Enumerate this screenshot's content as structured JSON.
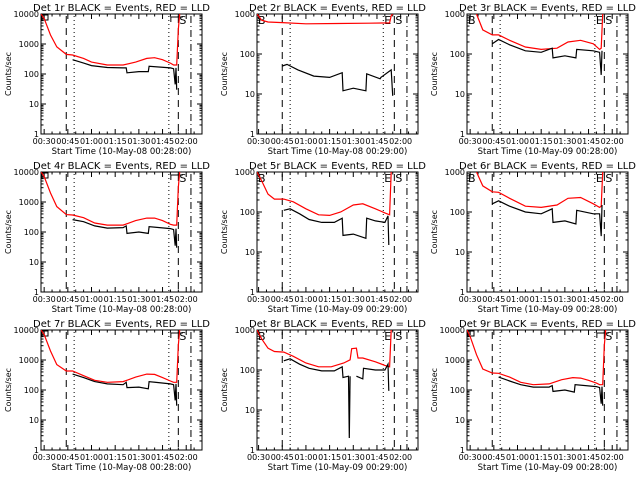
{
  "colors": {
    "events": "#000000",
    "lld": "#ff0000",
    "axis": "#000000",
    "background": "#ffffff"
  },
  "chart_data": [
    {
      "type": "line",
      "title": "Det 1r BLACK = Events, RED = LLD",
      "xlabel": "Start Time (10-May-08 00:28:00)",
      "ylabel": "Counts/sec",
      "x_ticks": [
        "00:30",
        "00:45",
        "01:00",
        "01:15",
        "01:30",
        "01:45",
        "02:00"
      ],
      "y_ticks": [
        "1",
        "10",
        "100",
        "1000",
        "10000"
      ],
      "ylim": [
        1,
        10000
      ],
      "xlim_min": [
        28,
        130
      ],
      "markers": {
        "dashed": [
          44,
          115
        ],
        "dotted": [
          49,
          109
        ],
        "dashdot": [
          123
        ]
      },
      "flags": {
        "left": "square",
        "right_E": "bracket",
        "right_S": "S"
      },
      "series": [
        {
          "name": "LLD",
          "x": [
            28,
            30,
            34,
            38,
            44,
            48,
            55,
            60,
            70,
            80,
            88,
            95,
            100,
            105,
            110,
            112,
            114,
            115,
            116
          ],
          "y": [
            10000,
            7000,
            2000,
            800,
            450,
            430,
            330,
            250,
            200,
            200,
            250,
            330,
            350,
            300,
            230,
            200,
            200,
            3000,
            12000
          ]
        },
        {
          "name": "Events",
          "x": [
            48,
            55,
            60,
            70,
            80,
            82,
            82.5,
            90,
            96,
            96.5,
            110,
            112,
            113,
            113.5,
            114
          ],
          "y": [
            300,
            230,
            190,
            165,
            160,
            160,
            110,
            120,
            120,
            180,
            160,
            150,
            45,
            160,
            30
          ]
        }
      ]
    },
    {
      "type": "line",
      "title": "Det 2r BLACK = Events, RED = LLD",
      "xlabel": "Start Time (10-May-08 00:29:00)",
      "ylabel": "Counts/sec",
      "x_ticks": [
        "00:30",
        "00:45",
        "01:00",
        "01:15",
        "01:30",
        "01:45",
        "02:00"
      ],
      "y_ticks": [
        "1",
        "10",
        "100",
        "1000"
      ],
      "ylim": [
        1,
        1000
      ],
      "xlim_min": [
        29,
        131
      ],
      "markers": {
        "dashed": [
          45,
          116
        ],
        "dotted": [
          50,
          109
        ],
        "dashdot": [
          124
        ]
      },
      "flags": {
        "left": "B",
        "right_E": "E",
        "right_S": "S"
      },
      "series": [
        {
          "name": "LLD",
          "x": [
            29,
            32,
            36,
            45,
            60,
            80,
            100,
            113,
            114,
            115
          ],
          "y": [
            1000,
            700,
            630,
            610,
            570,
            580,
            590,
            600,
            900,
            1000
          ]
        },
        {
          "name": "Events",
          "x": [
            45,
            48,
            55,
            65,
            75,
            83,
            83.5,
            90,
            98,
            98.5,
            107,
            107.5,
            114,
            115
          ],
          "y": [
            50,
            55,
            40,
            28,
            26,
            34,
            12,
            14,
            12,
            32,
            24,
            26,
            40,
            9
          ]
        }
      ]
    },
    {
      "type": "line",
      "title": "Det 3r BLACK = Events, RED = LLD",
      "xlabel": "Start Time (10-May-09 00:28:00)",
      "ylabel": "Counts/sec",
      "x_ticks": [
        "00:30",
        "00:45",
        "01:00",
        "01:15",
        "01:30",
        "01:45",
        "02:00"
      ],
      "y_ticks": [
        "1",
        "10",
        "100",
        "1000"
      ],
      "ylim": [
        1,
        1000
      ],
      "xlim_min": [
        28,
        130
      ],
      "markers": {
        "dashed": [
          44,
          115
        ],
        "dotted": [
          49,
          109
        ],
        "dashdot": [
          123
        ]
      },
      "flags": {
        "left": "B",
        "right_E": "E",
        "right_S": "S"
      },
      "series": [
        {
          "name": "LLD",
          "x": [
            34,
            38,
            44,
            48,
            55,
            65,
            75,
            85,
            92,
            100,
            108,
            112,
            113,
            114
          ],
          "y": [
            1000,
            400,
            300,
            300,
            220,
            150,
            130,
            140,
            200,
            220,
            180,
            130,
            140,
            1000
          ]
        },
        {
          "name": "Events",
          "x": [
            44,
            48,
            55,
            65,
            75,
            82,
            82.5,
            90,
            97,
            97.5,
            108,
            112,
            113,
            113.5
          ],
          "y": [
            180,
            230,
            170,
            120,
            110,
            140,
            80,
            90,
            80,
            130,
            120,
            110,
            30,
            120
          ]
        }
      ]
    },
    {
      "type": "line",
      "title": "Det 4r BLACK = Events, RED = LLD",
      "xlabel": "Start Time (10-May-08 00:28:00)",
      "ylabel": "Counts/sec",
      "x_ticks": [
        "00:30",
        "00:45",
        "01:00",
        "01:15",
        "01:30",
        "01:45",
        "02:00"
      ],
      "y_ticks": [
        "1",
        "10",
        "100",
        "1000",
        "10000"
      ],
      "ylim": [
        1,
        10000
      ],
      "xlim_min": [
        28,
        130
      ],
      "markers": {
        "dashed": [
          44,
          115
        ],
        "dotted": [
          49,
          109
        ],
        "dashdot": [
          123
        ]
      },
      "flags": {
        "left": "square",
        "right_E": "bracket",
        "right_S": "S"
      },
      "series": [
        {
          "name": "LLD",
          "x": [
            28,
            30,
            34,
            38,
            44,
            48,
            55,
            62,
            70,
            80,
            88,
            95,
            100,
            105,
            110,
            112,
            114,
            115,
            116
          ],
          "y": [
            10000,
            7000,
            2000,
            700,
            380,
            370,
            300,
            200,
            170,
            170,
            240,
            290,
            290,
            240,
            180,
            170,
            170,
            3000,
            12000
          ]
        },
        {
          "name": "Events",
          "x": [
            48,
            55,
            62,
            70,
            80,
            82,
            82.5,
            90,
            96,
            96.5,
            110,
            112,
            113,
            113.5,
            114
          ],
          "y": [
            260,
            220,
            160,
            135,
            140,
            160,
            90,
            100,
            90,
            150,
            130,
            120,
            35,
            130,
            30
          ]
        }
      ]
    },
    {
      "type": "line",
      "title": "Det 5r BLACK = Events, RED = LLD",
      "xlabel": "Start Time (10-May-09 00:29:00)",
      "ylabel": "Counts/sec",
      "x_ticks": [
        "00:30",
        "00:45",
        "01:00",
        "01:15",
        "01:30",
        "01:45",
        "02:00"
      ],
      "y_ticks": [
        "1",
        "10",
        "100",
        "1000"
      ],
      "ylim": [
        1,
        1000
      ],
      "xlim_min": [
        29,
        131
      ],
      "markers": {
        "dashed": [
          45,
          116
        ],
        "dotted": [
          50,
          109
        ],
        "dashdot": [
          124
        ]
      },
      "flags": {
        "left": "B",
        "right_E": "E",
        "right_S": "S"
      },
      "series": [
        {
          "name": "LLD",
          "x": [
            29,
            32,
            36,
            40,
            46,
            52,
            60,
            68,
            75,
            82,
            90,
            96,
            104,
            110,
            113,
            114
          ],
          "y": [
            1000,
            600,
            280,
            210,
            210,
            180,
            120,
            85,
            82,
            100,
            150,
            160,
            120,
            95,
            85,
            1000
          ]
        },
        {
          "name": "Events",
          "x": [
            46,
            50,
            56,
            62,
            70,
            78,
            83,
            83.5,
            90,
            98,
            98.5,
            104,
            110,
            112,
            112.5
          ],
          "y": [
            110,
            120,
            90,
            65,
            55,
            55,
            70,
            26,
            28,
            22,
            70,
            60,
            55,
            80,
            15
          ]
        }
      ]
    },
    {
      "type": "line",
      "title": "Det 6r BLACK = Events, RED = LLD",
      "xlabel": "Start Time (10-May-09 00:28:00)",
      "ylabel": "Counts/sec",
      "x_ticks": [
        "00:30",
        "00:45",
        "01:00",
        "01:15",
        "01:30",
        "01:45",
        "02:00"
      ],
      "y_ticks": [
        "1",
        "10",
        "100",
        "1000"
      ],
      "ylim": [
        1,
        1000
      ],
      "xlim_min": [
        28,
        130
      ],
      "markers": {
        "dashed": [
          44,
          115
        ],
        "dotted": [
          49,
          109
        ],
        "dashdot": [
          123
        ]
      },
      "flags": {
        "left": "B",
        "right_E": "E",
        "right_S": "S"
      },
      "series": [
        {
          "name": "LLD",
          "x": [
            34,
            38,
            44,
            48,
            55,
            65,
            75,
            85,
            92,
            100,
            108,
            112,
            113,
            114
          ],
          "y": [
            1000,
            450,
            320,
            310,
            220,
            140,
            130,
            150,
            220,
            230,
            160,
            130,
            140,
            1000
          ]
        },
        {
          "name": "Events",
          "x": [
            44,
            48,
            55,
            65,
            75,
            82,
            82.5,
            90,
            97,
            97.5,
            108,
            112,
            113,
            113.5
          ],
          "y": [
            160,
            190,
            140,
            100,
            90,
            120,
            55,
            60,
            50,
            110,
            90,
            90,
            25,
            150
          ]
        }
      ]
    },
    {
      "type": "line",
      "title": "Det 7r BLACK = Events, RED = LLD",
      "xlabel": "Start Time (10-May-08 00:28:00)",
      "ylabel": "Counts/sec",
      "x_ticks": [
        "00:30",
        "00:45",
        "01:00",
        "01:15",
        "01:30",
        "01:45",
        "02:00"
      ],
      "y_ticks": [
        "1",
        "10",
        "100",
        "1000",
        "10000"
      ],
      "ylim": [
        1,
        10000
      ],
      "xlim_min": [
        28,
        130
      ],
      "markers": {
        "dashed": [
          44,
          115
        ],
        "dotted": [
          49,
          109
        ],
        "dashdot": [
          123
        ]
      },
      "flags": {
        "left": "square",
        "right_E": "bracket",
        "right_S": "S"
      },
      "series": [
        {
          "name": "LLD",
          "x": [
            28,
            30,
            34,
            38,
            44,
            48,
            55,
            62,
            70,
            80,
            88,
            95,
            100,
            105,
            110,
            112,
            114,
            115,
            116
          ],
          "y": [
            10000,
            7000,
            2000,
            700,
            430,
            430,
            300,
            210,
            180,
            190,
            270,
            340,
            330,
            260,
            200,
            180,
            180,
            3000,
            12000
          ]
        },
        {
          "name": "Events",
          "x": [
            48,
            55,
            62,
            70,
            80,
            82,
            82.5,
            90,
            96,
            96.5,
            110,
            112,
            113,
            113.5,
            114
          ],
          "y": [
            340,
            260,
            190,
            160,
            150,
            180,
            120,
            125,
            110,
            190,
            160,
            150,
            45,
            160,
            30
          ]
        }
      ]
    },
    {
      "type": "line",
      "title": "Det 8r BLACK = Events, RED = LLD",
      "xlabel": "Start Time (10-May-09 00:29:00)",
      "ylabel": "Counts/sec",
      "x_ticks": [
        "00:30",
        "00:45",
        "01:00",
        "01:15",
        "01:30",
        "01:45",
        "02:00"
      ],
      "y_ticks": [
        "1",
        "10",
        "100",
        "1000"
      ],
      "ylim": [
        1,
        1000
      ],
      "xlim_min": [
        29,
        131
      ],
      "markers": {
        "dashed": [
          45,
          116
        ],
        "dotted": [
          50,
          109
        ],
        "dashdot": [
          124
        ]
      },
      "flags": {
        "left": "B",
        "right_E": "E",
        "right_S": "S"
      },
      "series": [
        {
          "name": "LLD",
          "x": [
            29,
            32,
            36,
            40,
            46,
            52,
            60,
            68,
            76,
            84,
            88,
            89,
            92,
            93,
            96,
            104,
            110,
            113,
            114
          ],
          "y": [
            1000,
            600,
            350,
            290,
            280,
            220,
            150,
            120,
            120,
            150,
            180,
            340,
            350,
            200,
            200,
            160,
            130,
            120,
            1000
          ]
        },
        {
          "name": "Events",
          "x": [
            46,
            50,
            56,
            62,
            70,
            78,
            83,
            83.5,
            87,
            87.5,
            88,
            88.5,
            92,
            96,
            96.5,
            104,
            110,
            112,
            112.5
          ],
          "y": [
            170,
            190,
            140,
            110,
            95,
            95,
            120,
            65,
            70,
            2,
            70,
            null,
            70,
            60,
            110,
            100,
            100,
            140,
            30
          ]
        }
      ]
    },
    {
      "type": "line",
      "title": "Det 9r BLACK = Events, RED = LLD",
      "xlabel": "Start Time (10-May-09 00:28:00)",
      "ylabel": "Counts/sec",
      "x_ticks": [
        "00:30",
        "00:45",
        "01:00",
        "01:15",
        "01:30",
        "01:45",
        "02:00"
      ],
      "y_ticks": [
        "1",
        "10",
        "100",
        "1000",
        "10000"
      ],
      "ylim": [
        1,
        10000
      ],
      "xlim_min": [
        28,
        130
      ],
      "markers": {
        "dashed": [
          44,
          115
        ],
        "dotted": [
          49,
          109
        ],
        "dashdot": [
          123
        ]
      },
      "flags": {
        "left": "square",
        "right_E": "bracket",
        "right_S": "S"
      },
      "series": [
        {
          "name": "LLD",
          "x": [
            28,
            30,
            34,
            38,
            44,
            48,
            55,
            62,
            70,
            80,
            88,
            95,
            100,
            105,
            110,
            112,
            114,
            115,
            116
          ],
          "y": [
            10000,
            6000,
            1500,
            500,
            370,
            360,
            270,
            180,
            150,
            160,
            220,
            260,
            250,
            210,
            170,
            150,
            150,
            3000,
            12000
          ]
        },
        {
          "name": "Events",
          "x": [
            48,
            55,
            62,
            70,
            80,
            82,
            82.5,
            90,
            96,
            96.5,
            110,
            112,
            113,
            113.5,
            114
          ],
          "y": [
            270,
            200,
            150,
            125,
            125,
            140,
            90,
            100,
            85,
            150,
            130,
            120,
            35,
            130,
            30
          ]
        }
      ]
    }
  ]
}
